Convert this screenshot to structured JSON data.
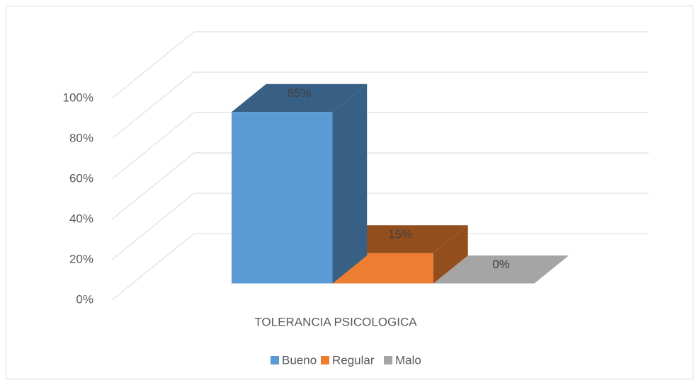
{
  "chart_data": {
    "type": "bar3d",
    "categories": [
      "TOLERANCIA PSICOLOGICA"
    ],
    "series": [
      {
        "name": "Bueno",
        "color": "#5b9bd5",
        "values": [
          85
        ],
        "value_labels": [
          "85%"
        ]
      },
      {
        "name": "Regular",
        "color": "#ed7d31",
        "values": [
          15
        ],
        "value_labels": [
          "15%"
        ]
      },
      {
        "name": "Malo",
        "color": "#a5a5a5",
        "values": [
          0
        ],
        "value_labels": [
          "0%"
        ]
      }
    ],
    "ylim": [
      0,
      100
    ],
    "yticks": [
      {
        "value": 0,
        "label": "0%"
      },
      {
        "value": 20,
        "label": "20%"
      },
      {
        "value": 40,
        "label": "40%"
      },
      {
        "value": 60,
        "label": "60%"
      },
      {
        "value": 80,
        "label": "80%"
      },
      {
        "value": 100,
        "label": "100%"
      }
    ],
    "grid": true,
    "legend": "bottom"
  }
}
